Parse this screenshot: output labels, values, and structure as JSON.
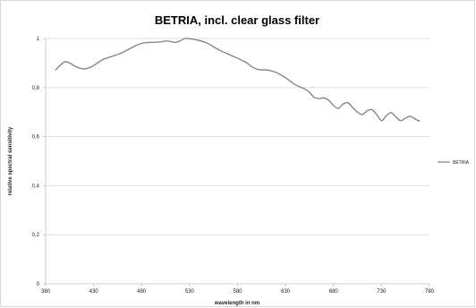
{
  "chart_data": {
    "type": "line",
    "title": "BETRIA, incl. clear glass filter",
    "xlabel": "wavelength in nm",
    "ylabel": "relative spectral sensitivity",
    "xlim": [
      380,
      780
    ],
    "ylim": [
      0,
      1
    ],
    "x_ticks": [
      "380",
      "430",
      "480",
      "530",
      "580",
      "630",
      "680",
      "730",
      "780"
    ],
    "y_ticks": [
      "0",
      "0,2",
      "0,4",
      "0,6",
      "0,8",
      "1"
    ],
    "grid": "horizontal",
    "legend": "right",
    "colors": {
      "series": "#7f7f7f",
      "grid": "#d9d9d9",
      "axis": "#bfbfbf"
    },
    "series": [
      {
        "name": "BETRIA",
        "x": [
          390,
          395,
          400,
          405,
          410,
          415,
          420,
          425,
          430,
          435,
          440,
          445,
          450,
          455,
          460,
          465,
          470,
          475,
          480,
          485,
          490,
          495,
          500,
          505,
          510,
          515,
          520,
          525,
          530,
          535,
          540,
          545,
          550,
          555,
          560,
          565,
          570,
          575,
          580,
          585,
          590,
          595,
          600,
          605,
          610,
          615,
          620,
          625,
          630,
          635,
          640,
          645,
          650,
          655,
          660,
          665,
          670,
          675,
          680,
          685,
          690,
          695,
          700,
          705,
          710,
          715,
          720,
          725,
          730,
          735,
          740,
          745,
          750,
          755,
          760,
          765,
          770
        ],
        "values": [
          0.87,
          0.89,
          0.905,
          0.9,
          0.888,
          0.88,
          0.876,
          0.88,
          0.89,
          0.903,
          0.915,
          0.922,
          0.928,
          0.935,
          0.943,
          0.953,
          0.963,
          0.973,
          0.98,
          0.983,
          0.984,
          0.985,
          0.986,
          0.99,
          0.988,
          0.984,
          0.99,
          1.0,
          0.999,
          0.996,
          0.992,
          0.986,
          0.978,
          0.966,
          0.955,
          0.945,
          0.937,
          0.928,
          0.92,
          0.91,
          0.9,
          0.885,
          0.875,
          0.872,
          0.872,
          0.868,
          0.862,
          0.852,
          0.84,
          0.826,
          0.812,
          0.803,
          0.795,
          0.78,
          0.76,
          0.755,
          0.758,
          0.748,
          0.727,
          0.715,
          0.733,
          0.738,
          0.718,
          0.7,
          0.69,
          0.705,
          0.71,
          0.69,
          0.665,
          0.685,
          0.698,
          0.68,
          0.665,
          0.675,
          0.683,
          0.672,
          0.662
        ]
      }
    ]
  }
}
